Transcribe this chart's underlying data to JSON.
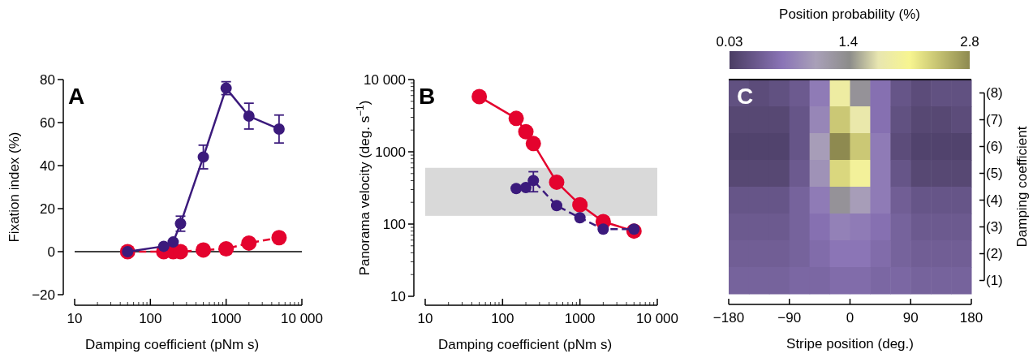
{
  "chart_data": [
    {
      "type": "line",
      "xlabel": "Damping coefficient (pNm s)",
      "ylabel": "Fixation index (%)",
      "annotations": [
        "A"
      ],
      "log": "x",
      "xlim": [
        10,
        10000
      ],
      "xticks": [
        10,
        100,
        1000,
        {
          "value": 10000,
          "label": "10 000"
        }
      ],
      "ylim": [
        -20,
        80
      ],
      "yticks": [
        {
          "value": -20,
          "label": "−20"
        },
        0,
        20,
        40,
        60,
        80
      ],
      "marker": "circle",
      "ref_lines": [
        {
          "axis": "y",
          "value": 0,
          "color": "#000000"
        }
      ],
      "series": [
        {
          "color": "#e4032e",
          "line_style": "dashed",
          "x": [
            50,
            150,
            200,
            250,
            500,
            1000,
            2000,
            5000
          ],
          "values": [
            0,
            0,
            0,
            0,
            0.8,
            1.3,
            4,
            6.5
          ],
          "errors": [
            null,
            null,
            null,
            null,
            null,
            null,
            null,
            2.5
          ]
        },
        {
          "color": "#3b1a7c",
          "line_style": "solid",
          "x": [
            50,
            150,
            200,
            250,
            500,
            1000,
            2000,
            5000
          ],
          "values": [
            0,
            2.5,
            4.5,
            13,
            44,
            76,
            63,
            57
          ],
          "errors": [
            null,
            null,
            null,
            3.5,
            5.5,
            3,
            6,
            6.5
          ]
        }
      ]
    },
    {
      "type": "line",
      "xlabel": "Damping coefficient (pNm s)",
      "ylabel": "Panorama velocity (deg. s$^{−1}$)",
      "annotations": [
        "B"
      ],
      "log": "xy",
      "xlim": [
        10,
        10000
      ],
      "xticks": [
        10,
        100,
        1000,
        {
          "value": 10000,
          "label": "10 000"
        }
      ],
      "ylim": [
        10,
        10000
      ],
      "yticks": [
        10,
        100,
        1000,
        {
          "value": 10000,
          "label": "10 000"
        }
      ],
      "marker": "circle",
      "bands": [
        {
          "axis": "y",
          "from": 130,
          "to": 600,
          "color": "#d9d9d9"
        }
      ],
      "series": [
        {
          "color": "#e4032e",
          "line_style": "solid",
          "x": [
            50,
            150,
            200,
            250,
            500,
            1000,
            2000,
            5000
          ],
          "values": [
            5800,
            2900,
            1900,
            1300,
            380,
            185,
            108,
            80
          ]
        },
        {
          "color": "#3b1a7c",
          "line_style": "dashed",
          "x": [
            150,
            200,
            250,
            500,
            1000,
            2000,
            5000
          ],
          "values": [
            310,
            320,
            400,
            180,
            122,
            85,
            85
          ],
          "errors": [
            null,
            null,
            [
              280,
              530
            ],
            null,
            null,
            null,
            null
          ]
        }
      ]
    },
    {
      "type": "heatmap",
      "xlabel": "Stripe position (deg.)",
      "ylabel": "Damping coefficient",
      "clabel": "Position probability (%)",
      "annotations": [
        "C"
      ],
      "x": [
        -165,
        -135,
        -105,
        -75,
        -45,
        -15,
        15,
        45,
        75,
        105,
        135,
        165
      ],
      "xlim": [
        -180,
        180
      ],
      "xticks": [
        {
          "value": -180,
          "label": "−180"
        },
        {
          "value": -90,
          "label": "−90"
        },
        0,
        90,
        180
      ],
      "y_categories": [
        "(8)",
        "(7)",
        "(6)",
        "(5)",
        "(4)",
        "(3)",
        "(2)",
        "(1)"
      ],
      "clim": [
        0.03,
        2.8
      ],
      "cticks": [
        0.03,
        1.4,
        2.8
      ],
      "cells": [
        [
          0.25,
          0.2,
          0.25,
          0.35,
          0.7,
          1.9,
          1.3,
          0.6,
          0.3,
          0.2,
          0.25,
          0.25
        ],
        [
          0.15,
          0.15,
          0.15,
          0.3,
          0.8,
          2.4,
          1.8,
          0.6,
          0.25,
          0.15,
          0.15,
          0.2
        ],
        [
          0.1,
          0.1,
          0.1,
          0.3,
          1.0,
          2.8,
          2.4,
          0.7,
          0.2,
          0.1,
          0.1,
          0.1
        ],
        [
          0.15,
          0.15,
          0.15,
          0.35,
          0.9,
          2.3,
          2.0,
          0.7,
          0.3,
          0.15,
          0.15,
          0.15
        ],
        [
          0.3,
          0.3,
          0.3,
          0.45,
          0.7,
          1.3,
          1.0,
          0.7,
          0.4,
          0.3,
          0.3,
          0.3
        ],
        [
          0.35,
          0.35,
          0.35,
          0.45,
          0.6,
          0.75,
          0.7,
          0.6,
          0.45,
          0.35,
          0.35,
          0.35
        ],
        [
          0.4,
          0.4,
          0.4,
          0.45,
          0.55,
          0.65,
          0.65,
          0.55,
          0.45,
          0.4,
          0.4,
          0.4
        ],
        [
          0.45,
          0.45,
          0.45,
          0.5,
          0.5,
          0.55,
          0.55,
          0.5,
          0.5,
          0.45,
          0.45,
          0.45
        ]
      ]
    }
  ]
}
